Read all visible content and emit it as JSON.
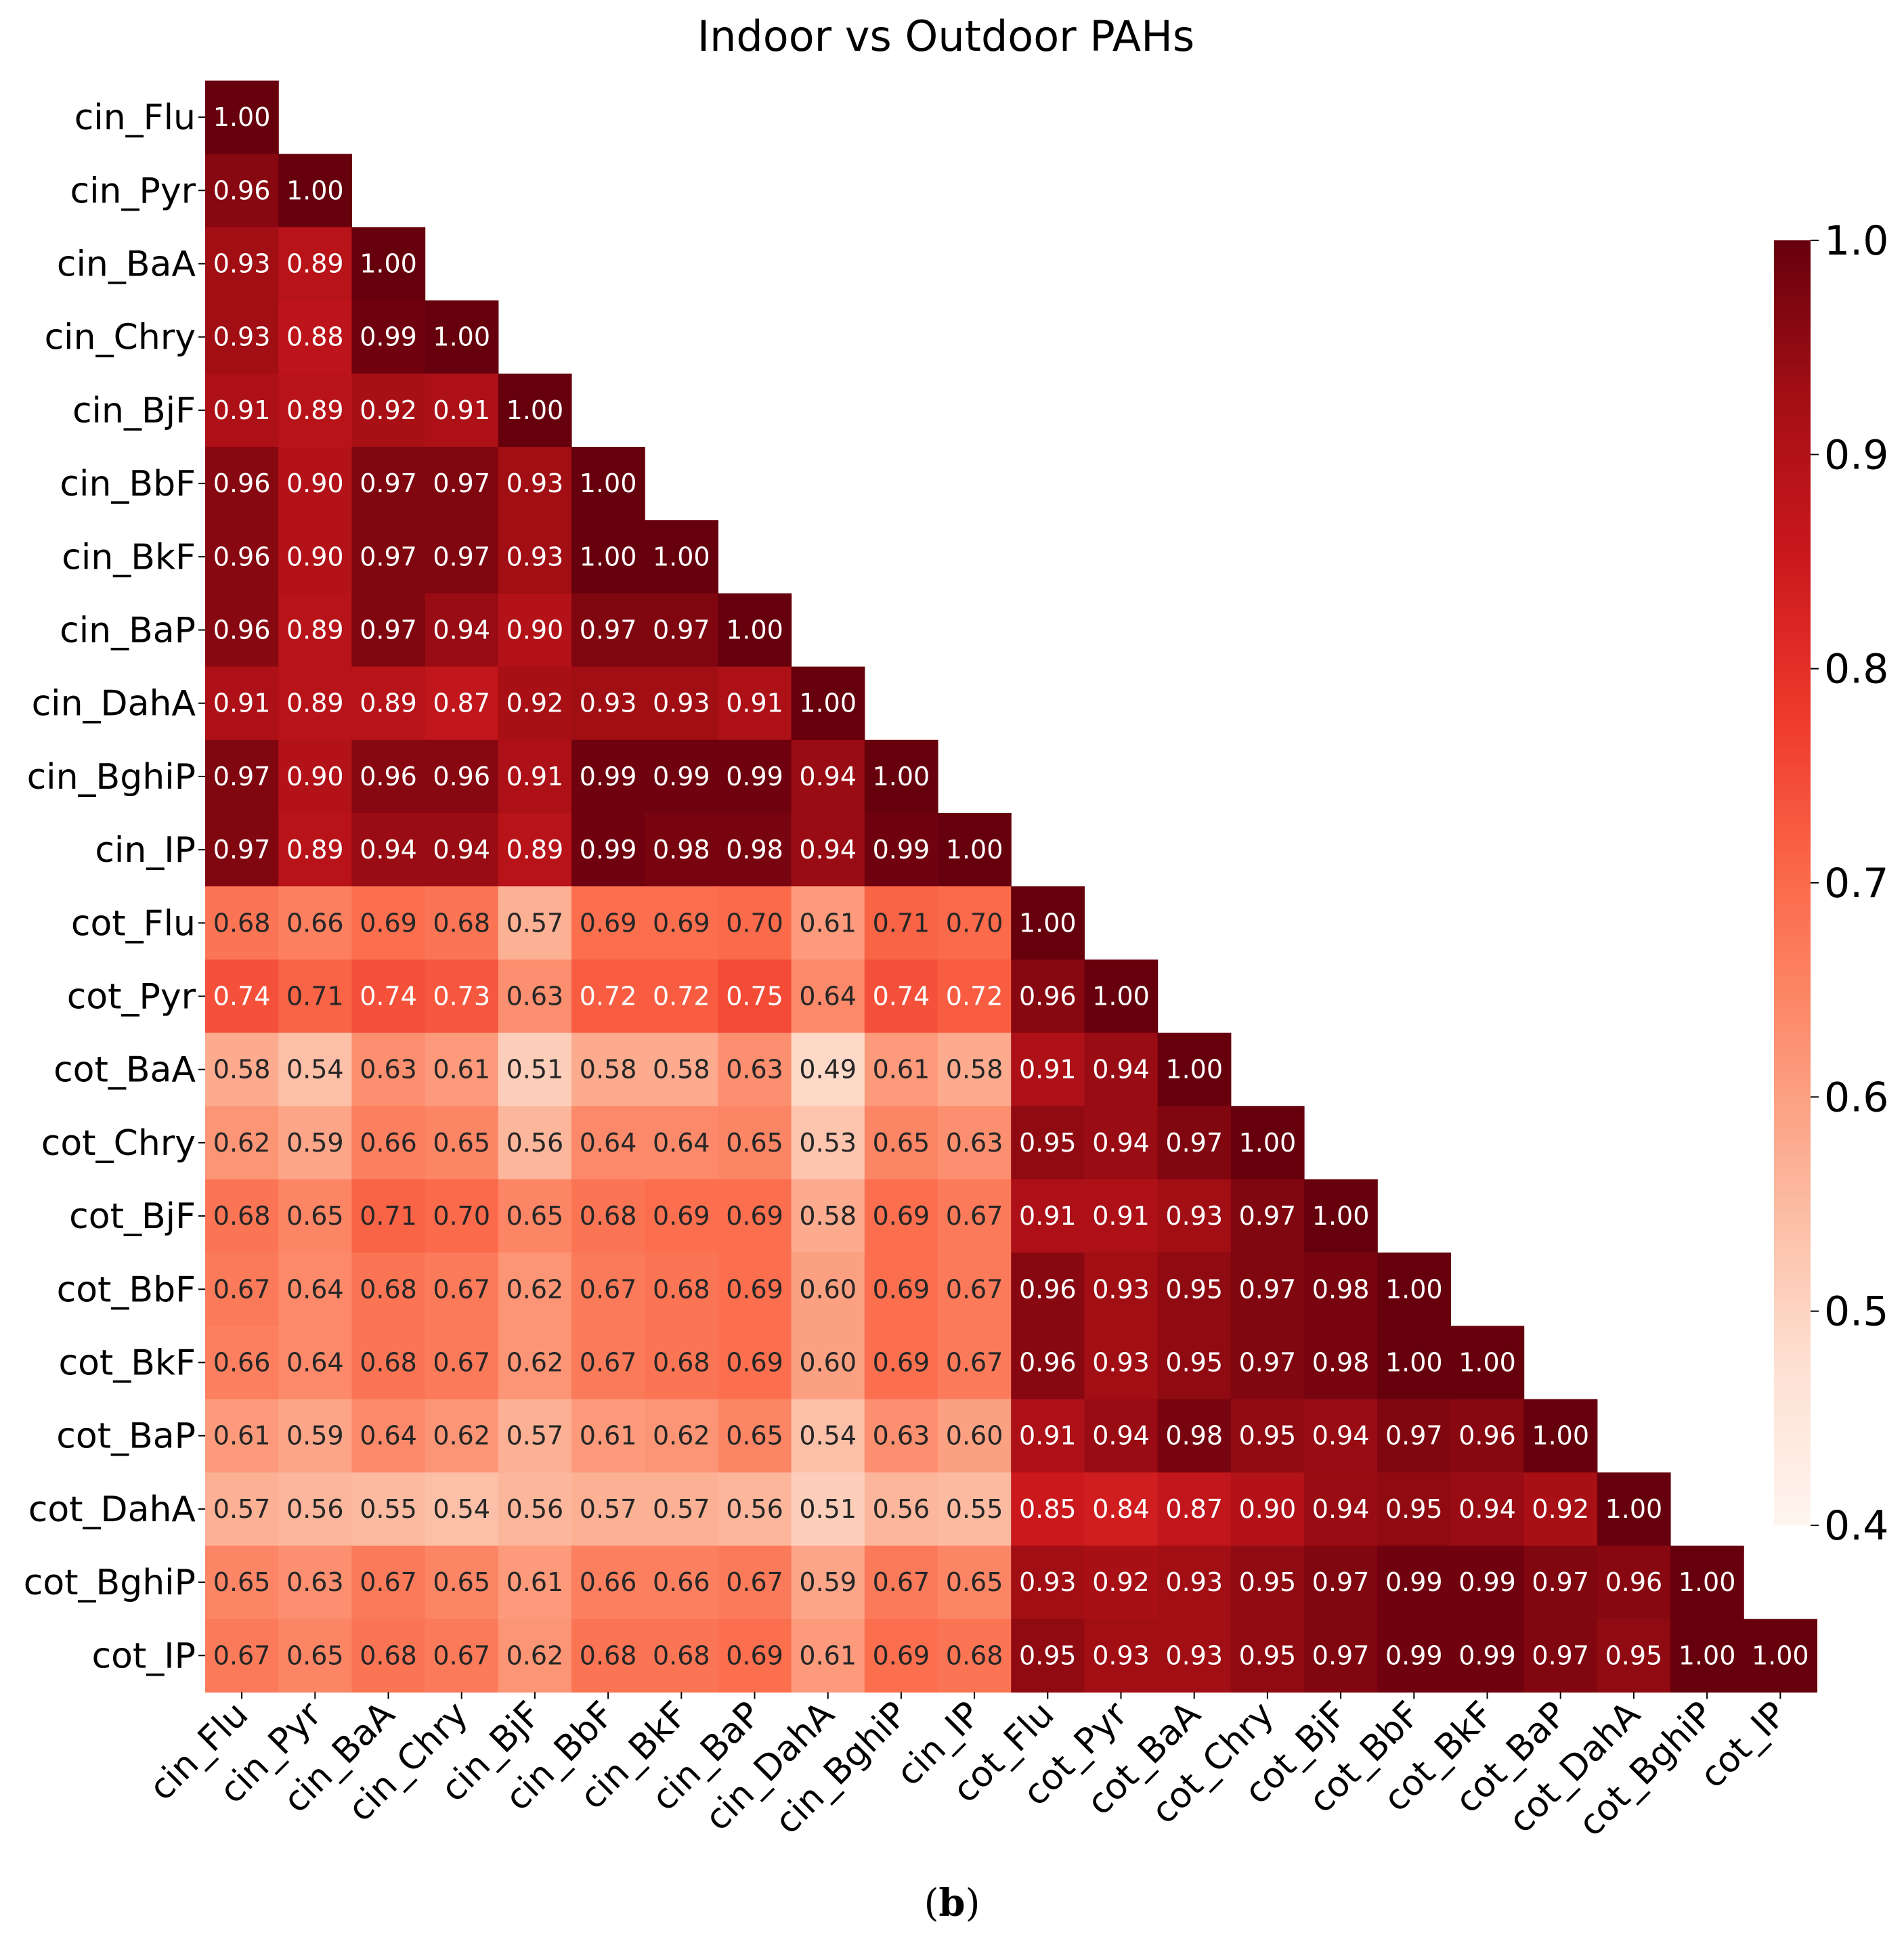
{
  "chart_data": {
    "type": "heatmap",
    "title": "Indoor vs Outdoor PAHs",
    "caption": {
      "open": "(",
      "letter": "b",
      "close": ")"
    },
    "labels": [
      "cin_Flu",
      "cin_Pyr",
      "cin_BaA",
      "cin_Chry",
      "cin_BjF",
      "cin_BbF",
      "cin_BkF",
      "cin_BaP",
      "cin_DahA",
      "cin_BghiP",
      "cin_IP",
      "cot_Flu",
      "cot_Pyr",
      "cot_BaA",
      "cot_Chry",
      "cot_BjF",
      "cot_BbF",
      "cot_BkF",
      "cot_BaP",
      "cot_DahA",
      "cot_BghiP",
      "cot_IP"
    ],
    "mask": "upper-triangle",
    "value_format": "2 decimals",
    "values": [
      [
        1.0
      ],
      [
        0.96,
        1.0
      ],
      [
        0.93,
        0.89,
        1.0
      ],
      [
        0.93,
        0.88,
        0.99,
        1.0
      ],
      [
        0.91,
        0.89,
        0.92,
        0.91,
        1.0
      ],
      [
        0.96,
        0.9,
        0.97,
        0.97,
        0.93,
        1.0
      ],
      [
        0.96,
        0.9,
        0.97,
        0.97,
        0.93,
        1.0,
        1.0
      ],
      [
        0.96,
        0.89,
        0.97,
        0.94,
        0.9,
        0.97,
        0.97,
        1.0
      ],
      [
        0.91,
        0.89,
        0.89,
        0.87,
        0.92,
        0.93,
        0.93,
        0.91,
        1.0
      ],
      [
        0.97,
        0.9,
        0.96,
        0.96,
        0.91,
        0.99,
        0.99,
        0.99,
        0.94,
        1.0
      ],
      [
        0.97,
        0.89,
        0.94,
        0.94,
        0.89,
        0.99,
        0.98,
        0.98,
        0.94,
        0.99,
        1.0
      ],
      [
        0.68,
        0.66,
        0.69,
        0.68,
        0.57,
        0.69,
        0.69,
        0.7,
        0.61,
        0.71,
        0.7,
        1.0
      ],
      [
        0.74,
        0.71,
        0.74,
        0.73,
        0.63,
        0.72,
        0.72,
        0.75,
        0.64,
        0.74,
        0.72,
        0.96,
        1.0
      ],
      [
        0.58,
        0.54,
        0.63,
        0.61,
        0.51,
        0.58,
        0.58,
        0.63,
        0.49,
        0.61,
        0.58,
        0.91,
        0.94,
        1.0
      ],
      [
        0.62,
        0.59,
        0.66,
        0.65,
        0.56,
        0.64,
        0.64,
        0.65,
        0.53,
        0.65,
        0.63,
        0.95,
        0.94,
        0.97,
        1.0
      ],
      [
        0.68,
        0.65,
        0.71,
        0.7,
        0.65,
        0.68,
        0.69,
        0.69,
        0.58,
        0.69,
        0.67,
        0.91,
        0.91,
        0.93,
        0.97,
        1.0
      ],
      [
        0.67,
        0.64,
        0.68,
        0.67,
        0.62,
        0.67,
        0.68,
        0.69,
        0.6,
        0.69,
        0.67,
        0.96,
        0.93,
        0.95,
        0.97,
        0.98,
        1.0
      ],
      [
        0.66,
        0.64,
        0.68,
        0.67,
        0.62,
        0.67,
        0.68,
        0.69,
        0.6,
        0.69,
        0.67,
        0.96,
        0.93,
        0.95,
        0.97,
        0.98,
        1.0,
        1.0
      ],
      [
        0.61,
        0.59,
        0.64,
        0.62,
        0.57,
        0.61,
        0.62,
        0.65,
        0.54,
        0.63,
        0.6,
        0.91,
        0.94,
        0.98,
        0.95,
        0.94,
        0.97,
        0.96,
        1.0
      ],
      [
        0.57,
        0.56,
        0.55,
        0.54,
        0.56,
        0.57,
        0.57,
        0.56,
        0.51,
        0.56,
        0.55,
        0.85,
        0.84,
        0.87,
        0.9,
        0.94,
        0.95,
        0.94,
        0.92,
        1.0
      ],
      [
        0.65,
        0.63,
        0.67,
        0.65,
        0.61,
        0.66,
        0.66,
        0.67,
        0.59,
        0.67,
        0.65,
        0.93,
        0.92,
        0.93,
        0.95,
        0.97,
        0.99,
        0.99,
        0.97,
        0.96,
        1.0
      ],
      [
        0.67,
        0.65,
        0.68,
        0.67,
        0.62,
        0.68,
        0.68,
        0.69,
        0.61,
        0.69,
        0.68,
        0.95,
        0.93,
        0.93,
        0.95,
        0.97,
        0.99,
        0.99,
        0.97,
        0.95,
        1.0,
        1.0
      ]
    ],
    "colormap": "Reds",
    "colorbar": {
      "min": 0.4,
      "max": 1.0,
      "ticks": [
        0.4,
        0.5,
        0.6,
        0.7,
        0.8,
        0.9,
        1.0
      ],
      "tick_labels": [
        "0.4",
        "0.5",
        "0.6",
        "0.7",
        "0.8",
        "0.9",
        "1.0"
      ]
    },
    "text_color_light": "#ffffff",
    "text_color_dark": "#262626"
  }
}
